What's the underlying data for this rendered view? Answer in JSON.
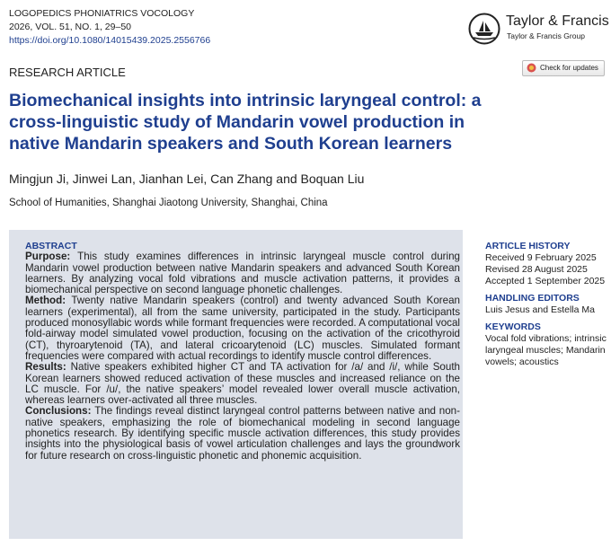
{
  "header": {
    "journal": "LOGOPEDICS PHONIATRICS VOCOLOGY",
    "volume": "2026, VOL. 51, NO. 1, 29–50",
    "doi": "https://doi.org/10.1080/14015439.2025.2556766",
    "publisher": "Taylor & Francis",
    "publisher_sub": "Taylor & Francis Group",
    "article_type": "RESEARCH ARTICLE",
    "check_updates": "Check for updates"
  },
  "title": "Biomechanical insights into intrinsic laryngeal control: a cross-linguistic study of Mandarin vowel production in native Mandarin speakers and South Korean learners",
  "authors": "Mingjun Ji, Jinwei Lan, Jianhan Lei, Can Zhang and Boquan Liu",
  "affiliation": "School of Humanities, Shanghai Jiaotong University, Shanghai, China",
  "abstract": {
    "heading": "ABSTRACT",
    "sections": [
      {
        "label": "Purpose:",
        "text": "This study examines differences in intrinsic laryngeal muscle control during Mandarin vowel production between native Mandarin speakers and advanced South Korean learners. By analyzing vocal fold vibrations and muscle activation patterns, it provides a biomechanical perspective on second language phonetic challenges."
      },
      {
        "label": "Method:",
        "text": "Twenty native Mandarin speakers (control) and twenty advanced South Korean learners (experimental), all from the same university, participated in the study. Participants produced monosyllabic words while formant frequencies were recorded. A computational vocal fold-airway model simulated vowel production, focusing on the activation of the cricothyroid (CT), thyroarytenoid (TA), and lateral cricoarytenoid (LC) muscles. Simulated formant frequencies were compared with actual recordings to identify muscle control differences."
      },
      {
        "label": "Results:",
        "text": "Native speakers exhibited higher CT and TA activation for /a/ and /i/, while South Korean learners showed reduced activation of these muscles and increased reliance on the LC muscle. For /u/, the native speakers’ model revealed lower overall muscle activation, whereas learners over-activated all three muscles."
      },
      {
        "label": "Conclusions:",
        "text": "The findings reveal distinct laryngeal control patterns between native and non-native speakers, emphasizing the role of biomechanical modeling in second language phonetics research. By identifying specific muscle activation differences, this study provides insights into the physiological basis of vowel articulation challenges and lays the groundwork for future research on cross-linguistic phonetic and phonemic acquisition."
      }
    ]
  },
  "sidebar": {
    "history_heading": "ARTICLE HISTORY",
    "history": [
      "Received 9 February 2025",
      "Revised 28 August 2025",
      "Accepted 1 September 2025"
    ],
    "editors_heading": "HANDLING EDITORS",
    "editors": "Luis Jesus and Estella Ma",
    "keywords_heading": "KEYWORDS",
    "keywords": "Vocal fold vibrations; intrinsic laryngeal muscles; Mandarin vowels; acoustics"
  }
}
